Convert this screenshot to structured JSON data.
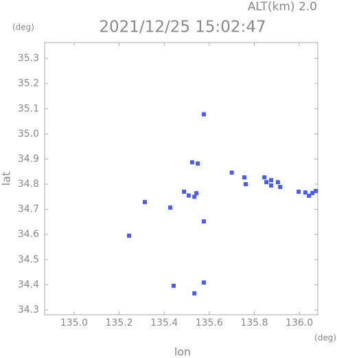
{
  "chart_data": {
    "type": "scatter",
    "title": "2021/12/25 15:02:47",
    "subtitle": "ALT(km) 2.0",
    "x_label": "lon",
    "y_label": "lat",
    "x_unit": "(deg)",
    "y_unit": "(deg)",
    "color": "#4a5cf0",
    "xlim": [
      134.869,
      136.082
    ],
    "ylim": [
      34.281,
      35.363
    ],
    "xticks": [
      {
        "value": 135.0,
        "label": "135.0"
      },
      135.2,
      135.4,
      135.6,
      135.8,
      {
        "value": 136.0,
        "label": "136.0"
      }
    ],
    "yticks": [
      34.3,
      34.4,
      34.5,
      34.6,
      34.7,
      34.8,
      34.9,
      {
        "value": 35.0,
        "label": "35.0"
      },
      35.1,
      35.2,
      35.3
    ],
    "x": [
      135.576,
      135.524,
      135.549,
      135.7,
      135.756,
      135.762,
      135.845,
      135.875,
      135.905,
      135.875,
      135.915,
      135.854,
      135.997,
      136.027,
      136.058,
      136.073,
      136.043,
      135.488,
      135.509,
      135.534,
      135.543,
      135.427,
      135.314,
      135.576,
      135.244,
      135.442,
      135.576,
      135.534
    ],
    "y": [
      35.078,
      34.887,
      34.882,
      34.846,
      34.827,
      34.8,
      34.827,
      34.816,
      34.808,
      34.795,
      34.789,
      34.808,
      34.77,
      34.767,
      34.765,
      34.773,
      34.754,
      34.77,
      34.755,
      34.75,
      34.764,
      34.707,
      34.729,
      34.652,
      34.595,
      34.396,
      34.409,
      34.366
    ]
  }
}
